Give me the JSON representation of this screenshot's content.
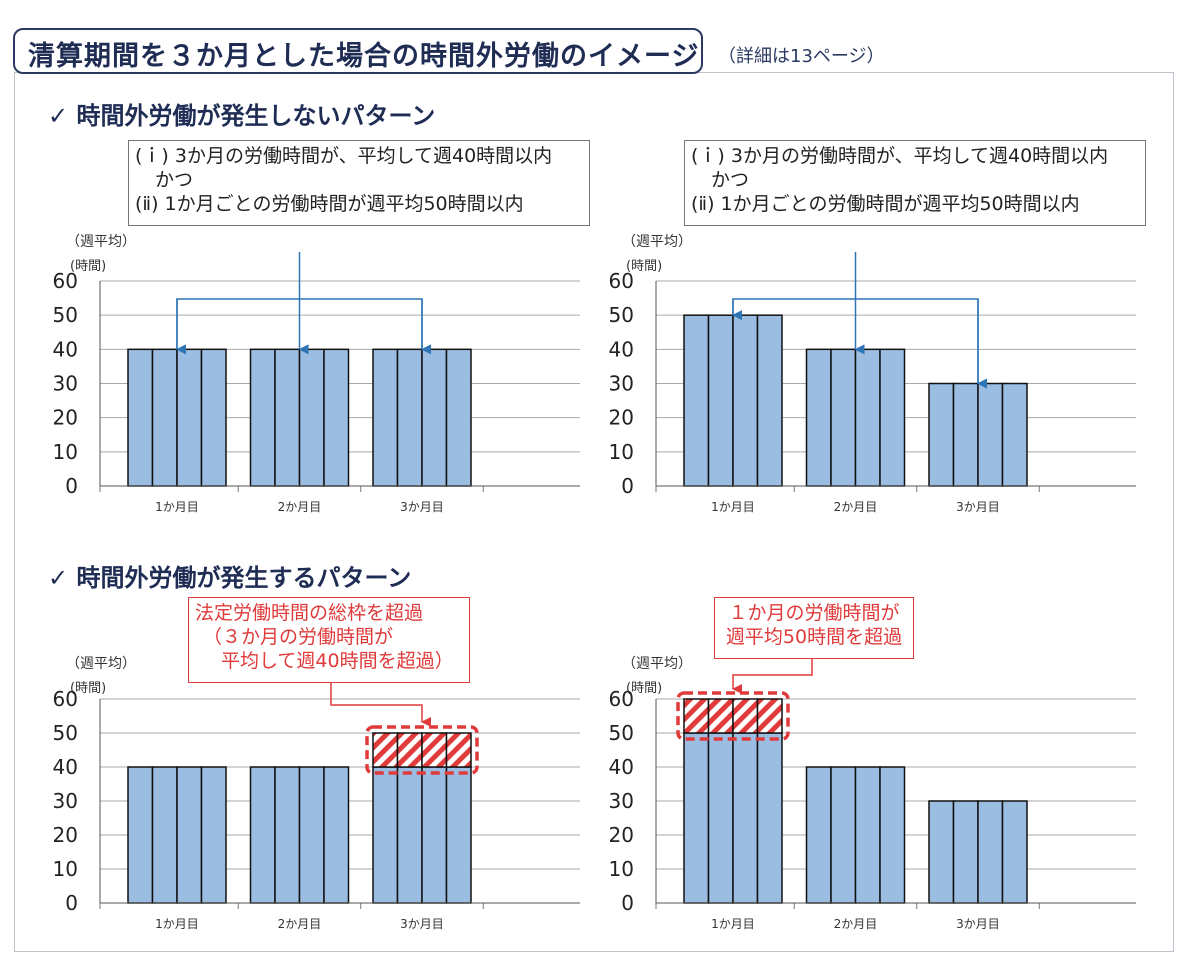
{
  "title": "清算期間を３か月とした場合の時間外労働のイメージ",
  "title_note": "（詳細は13ページ）",
  "section1": "✓ 時間外労働が発生しないパターン",
  "section2": "✓ 時間外労働が発生するパターン",
  "condition_box": {
    "line1": "(ｉ) 3か月の労働時間が、平均して週40時間以内",
    "line2": "かつ",
    "line3": "(ⅱ) 1か月ごとの労働時間が週平均50時間以内"
  },
  "warn_left": {
    "line1": "法定労働時間の総枠を超過",
    "line2": "（３か月の労働時間が",
    "line3": "平均して週40時間を超過）"
  },
  "warn_right": {
    "line1": "１か月の労働時間が",
    "line2": "週平均50時間を超過"
  },
  "colors": {
    "bar": "#9bbde2",
    "accent_arrow": "#2e75b6",
    "warning": "#e03a3a",
    "title": "#1f2d55"
  },
  "chart_data": [
    {
      "type": "bar",
      "ylabel_top": "（週平均）",
      "ylabel_unit": "(時間)",
      "categories": [
        "1か月目",
        "2か月目",
        "3か月目"
      ],
      "weeks_per_month": 4,
      "values": [
        40,
        40,
        40
      ],
      "ylim": [
        0,
        60
      ],
      "yticks": [
        0,
        10,
        20,
        30,
        40,
        50,
        60
      ],
      "grid": true
    },
    {
      "type": "bar",
      "ylabel_top": "（週平均）",
      "ylabel_unit": "(時間)",
      "categories": [
        "1か月目",
        "2か月目",
        "3か月目"
      ],
      "weeks_per_month": 4,
      "values": [
        50,
        40,
        30
      ],
      "ylim": [
        0,
        60
      ],
      "yticks": [
        0,
        10,
        20,
        30,
        40,
        50,
        60
      ],
      "grid": true
    },
    {
      "type": "bar",
      "ylabel_top": "（週平均）",
      "ylabel_unit": "(時間)",
      "categories": [
        "1か月目",
        "2か月目",
        "3か月目"
      ],
      "weeks_per_month": 4,
      "values": [
        40,
        40,
        50
      ],
      "highlight": {
        "category": "3か月目",
        "from": 40,
        "to": 50
      },
      "ylim": [
        0,
        60
      ],
      "yticks": [
        0,
        10,
        20,
        30,
        40,
        50,
        60
      ],
      "grid": true
    },
    {
      "type": "bar",
      "ylabel_top": "（週平均）",
      "ylabel_unit": "(時間)",
      "categories": [
        "1か月目",
        "2か月目",
        "3か月目"
      ],
      "weeks_per_month": 4,
      "values": [
        60,
        40,
        30
      ],
      "highlight": {
        "category": "1か月目",
        "from": 50,
        "to": 60
      },
      "ylim": [
        0,
        60
      ],
      "yticks": [
        0,
        10,
        20,
        30,
        40,
        50,
        60
      ],
      "grid": true
    }
  ]
}
